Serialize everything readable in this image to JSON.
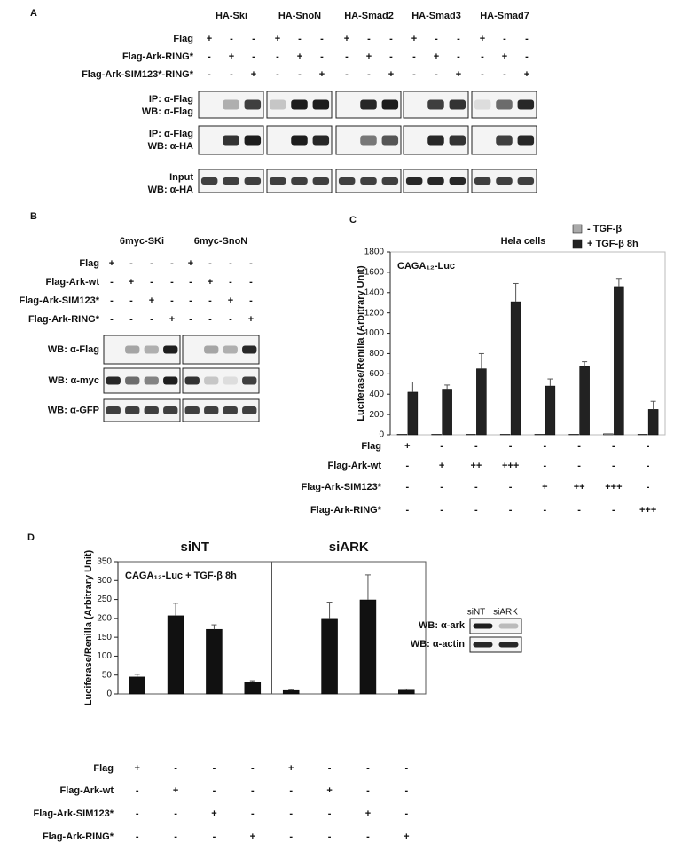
{
  "panel_a": {
    "letter": "A",
    "columns": [
      "HA-Ski",
      "HA-SnoN",
      "HA-Smad2",
      "HA-Smad3",
      "HA-Smad7"
    ],
    "rows": [
      {
        "label": "Flag",
        "marks": [
          "+",
          "-",
          "-",
          "+",
          "-",
          "-",
          "+",
          "-",
          "-",
          "+",
          "-",
          "-",
          "+",
          "-",
          "-"
        ]
      },
      {
        "label": "Flag-Ark-RING*",
        "marks": [
          "-",
          "+",
          "-",
          "-",
          "+",
          "-",
          "-",
          "+",
          "-",
          "-",
          "+",
          "-",
          "-",
          "+",
          "-"
        ]
      },
      {
        "label": "Flag-Ark-SIM123*-RING*",
        "marks": [
          "-",
          "-",
          "+",
          "-",
          "-",
          "+",
          "-",
          "-",
          "+",
          "-",
          "-",
          "+",
          "-",
          "-",
          "+"
        ]
      }
    ],
    "blots": [
      [
        "IP: α-Flag",
        "WB: α-Flag"
      ],
      [
        "IP: α-Flag",
        "WB: α-HA"
      ],
      [
        "Input",
        "WB: α-HA"
      ]
    ]
  },
  "panel_b": {
    "letter": "B",
    "columns": [
      "6myc-SKi",
      "6myc-SnoN"
    ],
    "rows": [
      {
        "label": "Flag",
        "marks": [
          "+",
          "-",
          "-",
          "-",
          "+",
          "-",
          "-",
          "-"
        ]
      },
      {
        "label": "Flag-Ark-wt",
        "marks": [
          "-",
          "+",
          "-",
          "-",
          "-",
          "+",
          "-",
          "-"
        ]
      },
      {
        "label": "Flag-Ark-SIM123*",
        "marks": [
          "-",
          "-",
          "+",
          "-",
          "-",
          "-",
          "+",
          "-"
        ]
      },
      {
        "label": "Flag-Ark-RING*",
        "marks": [
          "-",
          "-",
          "-",
          "+",
          "-",
          "-",
          "-",
          "+"
        ]
      }
    ],
    "blots": [
      "WB: α-Flag",
      "WB: α-myc",
      "WB: α-GFP"
    ]
  },
  "chart_data": [
    {
      "type": "bar",
      "panel": "C",
      "title": "Hela cells",
      "annotation": "CAGA₁₂-Luc",
      "ylabel": "Luciferase/Renilla (Arbitrary Unit)",
      "categories": [
        null,
        null,
        null,
        null,
        null,
        null,
        null,
        null
      ],
      "series": [
        {
          "name": "- TGF-β",
          "color": "#aaaaaa",
          "values": [
            5,
            5,
            5,
            5,
            5,
            5,
            10,
            5
          ]
        },
        {
          "name": "+ TGF-β 8h",
          "color": "#222222",
          "values": [
            420,
            450,
            650,
            1310,
            480,
            670,
            1460,
            250
          ],
          "errors": [
            100,
            40,
            150,
            180,
            70,
            50,
            80,
            80
          ]
        }
      ],
      "ylim": [
        0,
        1800
      ],
      "yticks": [
        0,
        200,
        400,
        600,
        800,
        1000,
        1200,
        1400,
        1600,
        1800
      ],
      "legend": "upper right",
      "conditions": [
        {
          "label": "Flag",
          "marks": [
            "+",
            "-",
            "-",
            "-",
            "-",
            "-",
            "-",
            "-"
          ]
        },
        {
          "label": "Flag-Ark-wt",
          "marks": [
            "-",
            "+",
            "++",
            "+++",
            "-",
            "-",
            "-",
            "-"
          ]
        },
        {
          "label": "Flag-Ark-SIM123*",
          "marks": [
            "-",
            "-",
            "-",
            "-",
            "+",
            "++",
            "+++",
            "-"
          ]
        },
        {
          "label": "Flag-Ark-RING*",
          "marks": [
            "-",
            "-",
            "-",
            "-",
            "-",
            "-",
            "-",
            "+++"
          ]
        }
      ]
    },
    {
      "type": "bar",
      "panel": "D",
      "annotation": "CAGA₁₂-Luc + TGF-β 8h",
      "ylabel": "Luciferase/Renilla (Arbitrary Unit)",
      "group_labels": [
        "siNT",
        "siARK"
      ],
      "categories": [
        null,
        null,
        null,
        null,
        null,
        null,
        null,
        null
      ],
      "series": [
        {
          "color": "#111111",
          "values": [
            45,
            207,
            171,
            31,
            9,
            200,
            249,
            10
          ],
          "errors": [
            7,
            33,
            12,
            4,
            2,
            43,
            66,
            3
          ]
        }
      ],
      "ylim": [
        0,
        350
      ],
      "yticks": [
        0,
        50,
        100,
        150,
        200,
        250,
        300,
        350
      ],
      "conditions": [
        {
          "label": "Flag",
          "marks": [
            "+",
            "-",
            "-",
            "-",
            "+",
            "-",
            "-",
            "-"
          ]
        },
        {
          "label": "Flag-Ark-wt",
          "marks": [
            "-",
            "+",
            "-",
            "-",
            "-",
            "+",
            "-",
            "-"
          ]
        },
        {
          "label": "Flag-Ark-SIM123*",
          "marks": [
            "-",
            "-",
            "+",
            "-",
            "-",
            "-",
            "+",
            "-"
          ]
        },
        {
          "label": "Flag-Ark-RING*",
          "marks": [
            "-",
            "-",
            "-",
            "+",
            "-",
            "-",
            "-",
            "+"
          ]
        }
      ],
      "inset": {
        "lanes": [
          "siNT",
          "siARK"
        ],
        "blots": [
          "WB: α-ark",
          "WB: α-actin"
        ]
      }
    }
  ]
}
